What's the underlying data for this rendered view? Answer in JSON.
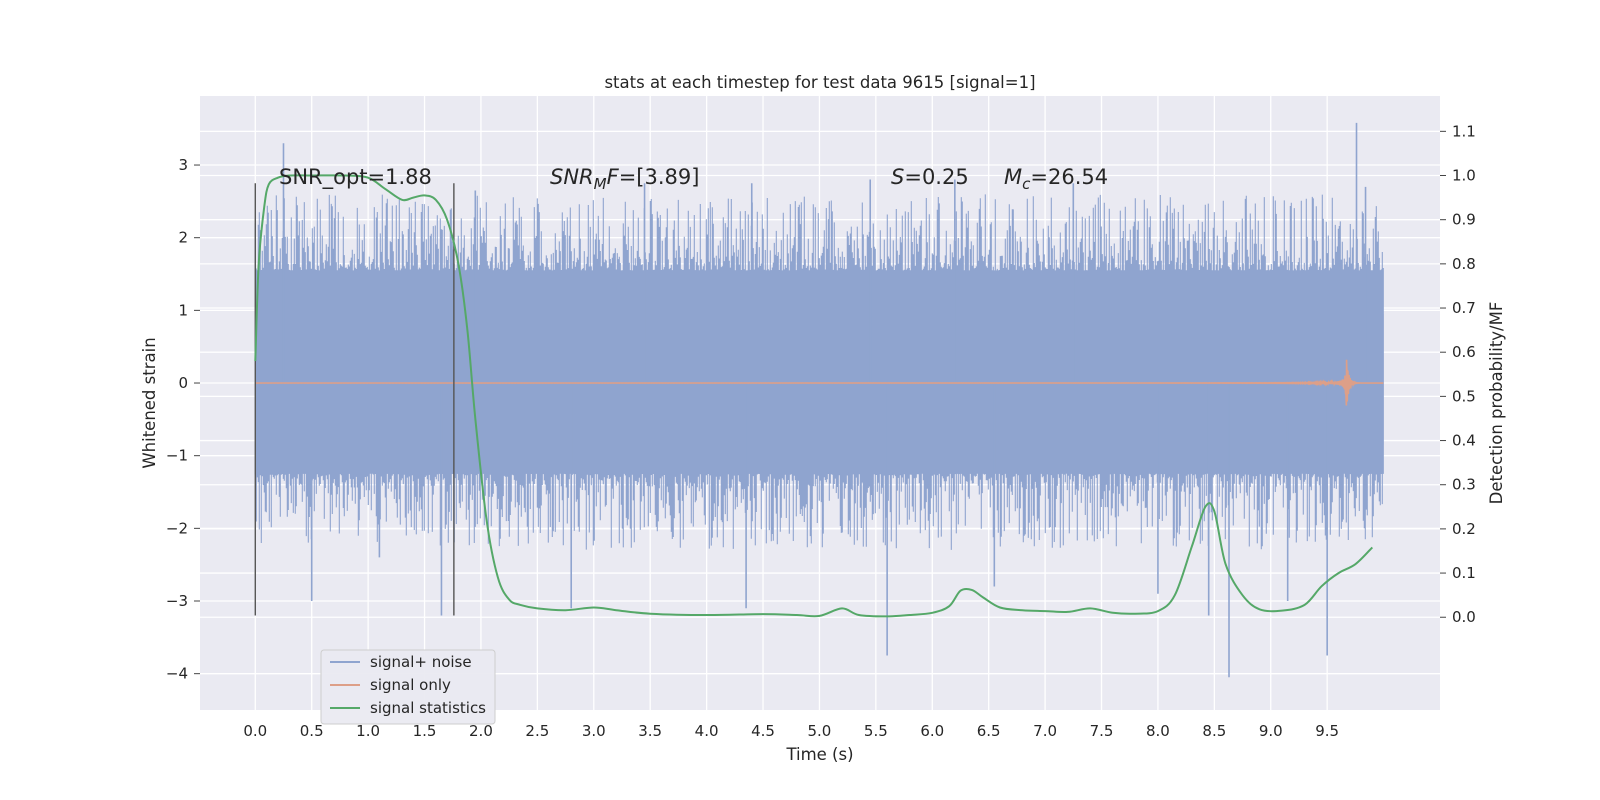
{
  "chart_data": {
    "type": "line",
    "title": "stats at each timestep for test data 9615 [signal=1]",
    "xlabel": "Time (s)",
    "ylabel": "Whitened strain",
    "ylabel_right": "Detection probability/MF",
    "xlim": [
      -0.49,
      10.5
    ],
    "ylim": [
      -4.5,
      3.95
    ],
    "ylim_right": [
      -0.21,
      1.18
    ],
    "xticks": [
      "0.0",
      "0.5",
      "1.0",
      "1.5",
      "2.0",
      "2.5",
      "3.0",
      "3.5",
      "4.0",
      "4.5",
      "5.0",
      "5.5",
      "6.0",
      "6.5",
      "7.0",
      "7.5",
      "8.0",
      "8.5",
      "9.0",
      "9.5"
    ],
    "yticks": [
      "3",
      "2",
      "1",
      "0",
      "−1",
      "−2",
      "−3",
      "−4"
    ],
    "yticks_right": [
      "1.1",
      "1.0",
      "0.9",
      "0.8",
      "0.7",
      "0.6",
      "0.5",
      "0.4",
      "0.3",
      "0.2",
      "0.1",
      "0.0"
    ],
    "grid": true,
    "legend_position": "lower-left",
    "annotations": {
      "snr_opt": "SNR_opt=1.88",
      "snr_mf_sym": "SNR",
      "snr_mf_sub": "M",
      "snr_mf_f": "F",
      "snr_mf_val": "=[3.89]",
      "s_sym": "S",
      "s_val": "=0.25",
      "mc_sym": "M",
      "mc_sub": "c",
      "mc_val": "=26.54"
    },
    "vlines": [
      0.0,
      1.76
    ],
    "series": [
      {
        "name": "signal+ noise",
        "color": "#8fa4cf",
        "axis": "left",
        "x_range": [
          0.0,
          10.0
        ],
        "core_band": [
          -1.25,
          1.55
        ],
        "envelope_peak_max": 2.6,
        "envelope_peak_min": -2.3,
        "spikes": [
          {
            "x": 0.25,
            "y": 3.3
          },
          {
            "x": 0.5,
            "y": -3.0
          },
          {
            "x": 1.1,
            "y": -2.4
          },
          {
            "x": 1.65,
            "y": -3.2
          },
          {
            "x": 1.95,
            "y": 2.65
          },
          {
            "x": 2.8,
            "y": -3.1
          },
          {
            "x": 3.45,
            "y": 2.75
          },
          {
            "x": 4.4,
            "y": 2.75
          },
          {
            "x": 4.35,
            "y": -3.1
          },
          {
            "x": 5.45,
            "y": 2.8
          },
          {
            "x": 5.6,
            "y": -3.75
          },
          {
            "x": 6.2,
            "y": 2.8
          },
          {
            "x": 6.55,
            "y": -2.8
          },
          {
            "x": 7.25,
            "y": 2.75
          },
          {
            "x": 8.0,
            "y": -2.9
          },
          {
            "x": 8.45,
            "y": -3.2
          },
          {
            "x": 8.63,
            "y": -4.05
          },
          {
            "x": 9.15,
            "y": -3.0
          },
          {
            "x": 9.5,
            "y": -3.75
          },
          {
            "x": 9.76,
            "y": 3.58
          },
          {
            "x": 9.84,
            "y": 2.7
          }
        ]
      },
      {
        "name": "signal only",
        "color": "#dd9f88",
        "axis": "left",
        "x_range": [
          0.0,
          10.0
        ],
        "chirp_peak_time": 9.67,
        "chirp_peak_amplitude": 0.38
      },
      {
        "name": "signal statistics",
        "color": "#55a868",
        "axis": "right",
        "x": [
          0.0,
          0.03,
          0.08,
          0.12,
          0.2,
          0.3,
          0.5,
          0.8,
          1.0,
          1.15,
          1.3,
          1.4,
          1.5,
          1.6,
          1.7,
          1.8,
          1.88,
          1.95,
          2.05,
          2.15,
          2.25,
          2.35,
          2.5,
          2.75,
          3.0,
          3.2,
          3.5,
          4.0,
          4.5,
          4.8,
          5.0,
          5.2,
          5.35,
          5.6,
          5.8,
          6.0,
          6.15,
          6.25,
          6.35,
          6.45,
          6.6,
          6.8,
          7.0,
          7.2,
          7.4,
          7.6,
          7.8,
          8.0,
          8.15,
          8.3,
          8.42,
          8.5,
          8.6,
          8.75,
          8.9,
          9.1,
          9.3,
          9.45,
          9.6,
          9.75,
          9.9
        ],
        "y": [
          0.58,
          0.8,
          0.93,
          0.98,
          0.995,
          1.0,
          1.0,
          1.0,
          0.995,
          0.97,
          0.945,
          0.95,
          0.955,
          0.945,
          0.9,
          0.8,
          0.65,
          0.45,
          0.22,
          0.09,
          0.04,
          0.028,
          0.02,
          0.016,
          0.022,
          0.016,
          0.008,
          0.005,
          0.007,
          0.005,
          0.003,
          0.02,
          0.005,
          0.002,
          0.005,
          0.01,
          0.025,
          0.06,
          0.062,
          0.045,
          0.022,
          0.016,
          0.014,
          0.012,
          0.02,
          0.01,
          0.008,
          0.014,
          0.05,
          0.16,
          0.25,
          0.24,
          0.12,
          0.05,
          0.018,
          0.015,
          0.028,
          0.07,
          0.1,
          0.12,
          0.158
        ]
      }
    ]
  }
}
